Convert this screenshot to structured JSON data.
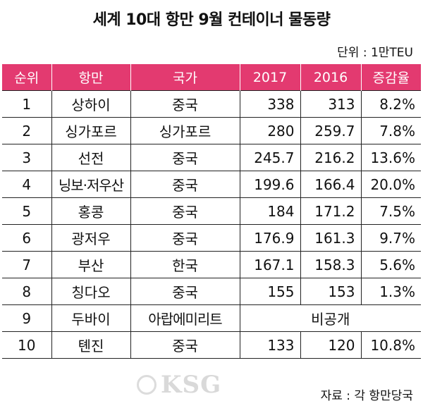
{
  "title": "세계 10대 항만 9월 컨테이너 물동량",
  "unit": "단위 : 1만TEU",
  "headers": [
    "순위",
    "항만",
    "국가",
    "2017",
    "2016",
    "증감율"
  ],
  "rows": [
    {
      "rank": "1",
      "port": "상하이",
      "country": "중국",
      "y2017": "338",
      "y2016": "313",
      "change": "8.2%"
    },
    {
      "rank": "2",
      "port": "싱가포르",
      "country": "싱가포르",
      "y2017": "280",
      "y2016": "259.7",
      "change": "7.8%"
    },
    {
      "rank": "3",
      "port": "선전",
      "country": "중국",
      "y2017": "245.7",
      "y2016": "216.2",
      "change": "13.6%"
    },
    {
      "rank": "4",
      "port": "닝보·저우산",
      "country": "중국",
      "y2017": "199.6",
      "y2016": "166.4",
      "change": "20.0%"
    },
    {
      "rank": "5",
      "port": "홍콩",
      "country": "중국",
      "y2017": "184",
      "y2016": "171.2",
      "change": "7.5%"
    },
    {
      "rank": "6",
      "port": "광저우",
      "country": "중국",
      "y2017": "176.9",
      "y2016": "161.3",
      "change": "9.7%"
    },
    {
      "rank": "7",
      "port": "부산",
      "country": "한국",
      "y2017": "167.1",
      "y2016": "158.3",
      "change": "5.6%"
    },
    {
      "rank": "8",
      "port": "칭다오",
      "country": "중국",
      "y2017": "155",
      "y2016": "153",
      "change": "1.3%"
    },
    {
      "rank": "9",
      "port": "두바이",
      "country": "아랍에미리트",
      "merged": "비공개"
    },
    {
      "rank": "10",
      "port": "톈진",
      "country": "중국",
      "y2017": "133",
      "y2016": "120",
      "change": "10.8%"
    }
  ],
  "source": "자료 : 각 항만당국",
  "logo_text": "KSG",
  "colors": {
    "header_bg": "#e33a70",
    "header_text": "#ffffff"
  }
}
